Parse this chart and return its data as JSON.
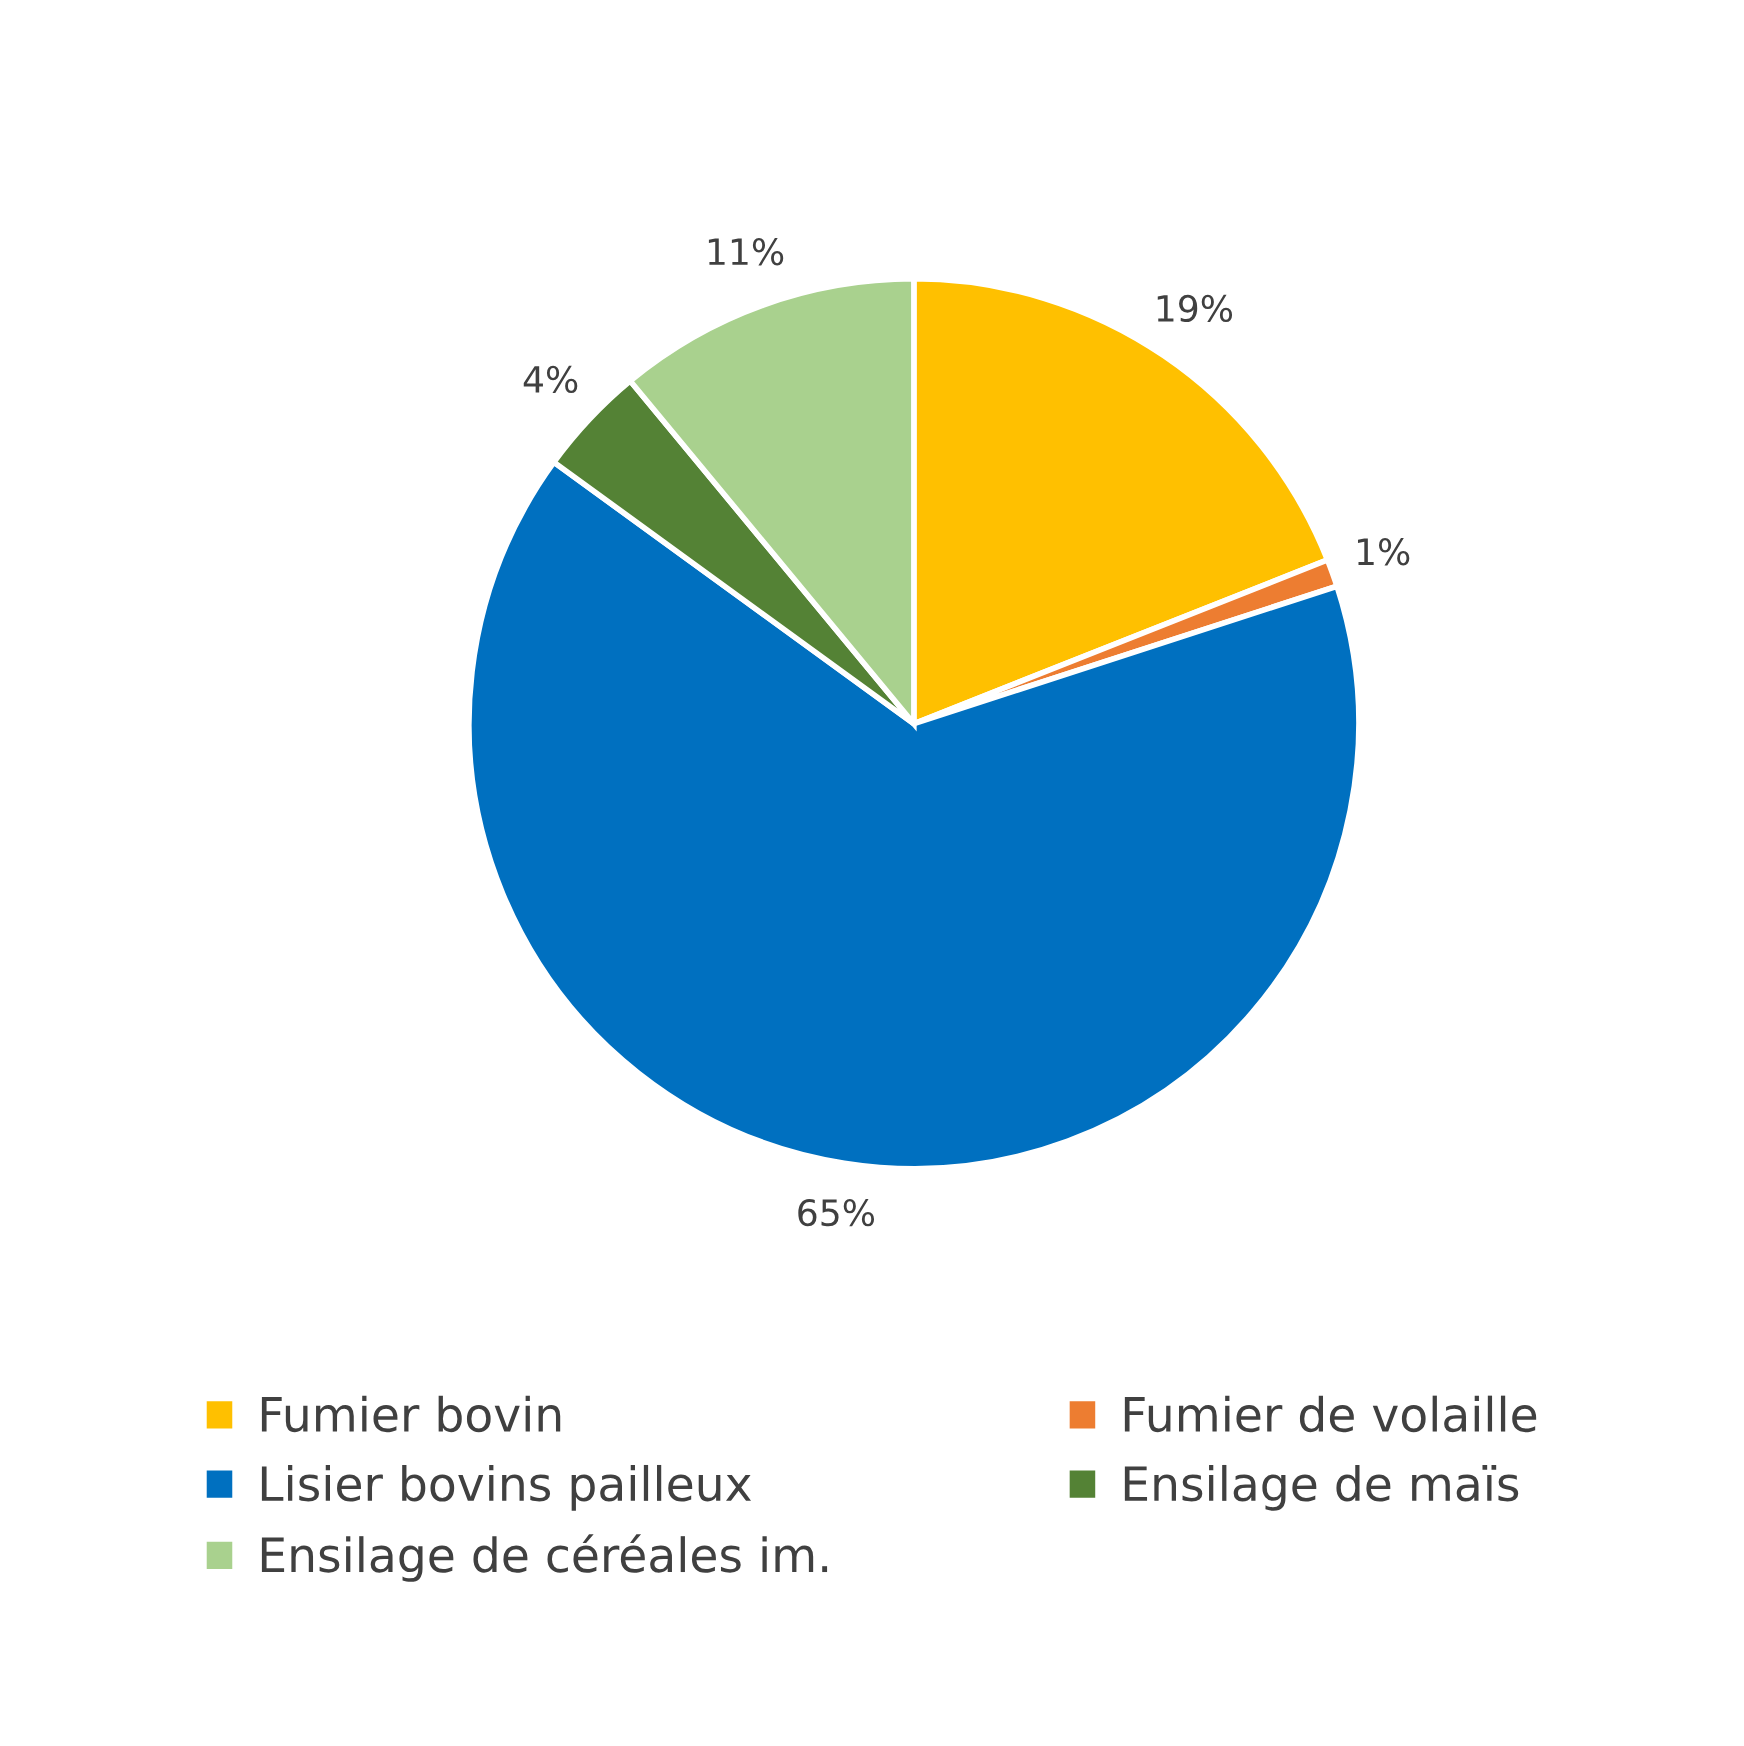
{
  "chart_data": {
    "type": "pie",
    "categories": [
      "Fumier bovin",
      "Fumier de volaille",
      "Lisier bovins pailleux",
      "Ensilage de maïs",
      "Ensilage de céréales im."
    ],
    "values": [
      19,
      1,
      65,
      4,
      11
    ],
    "colors": [
      "#ffc000",
      "#ed7d31",
      "#0070c0",
      "#548235",
      "#a9d18e"
    ],
    "value_labels": [
      "19%",
      "1%",
      "65%",
      "4%",
      "11%"
    ],
    "legend": "bottom"
  }
}
